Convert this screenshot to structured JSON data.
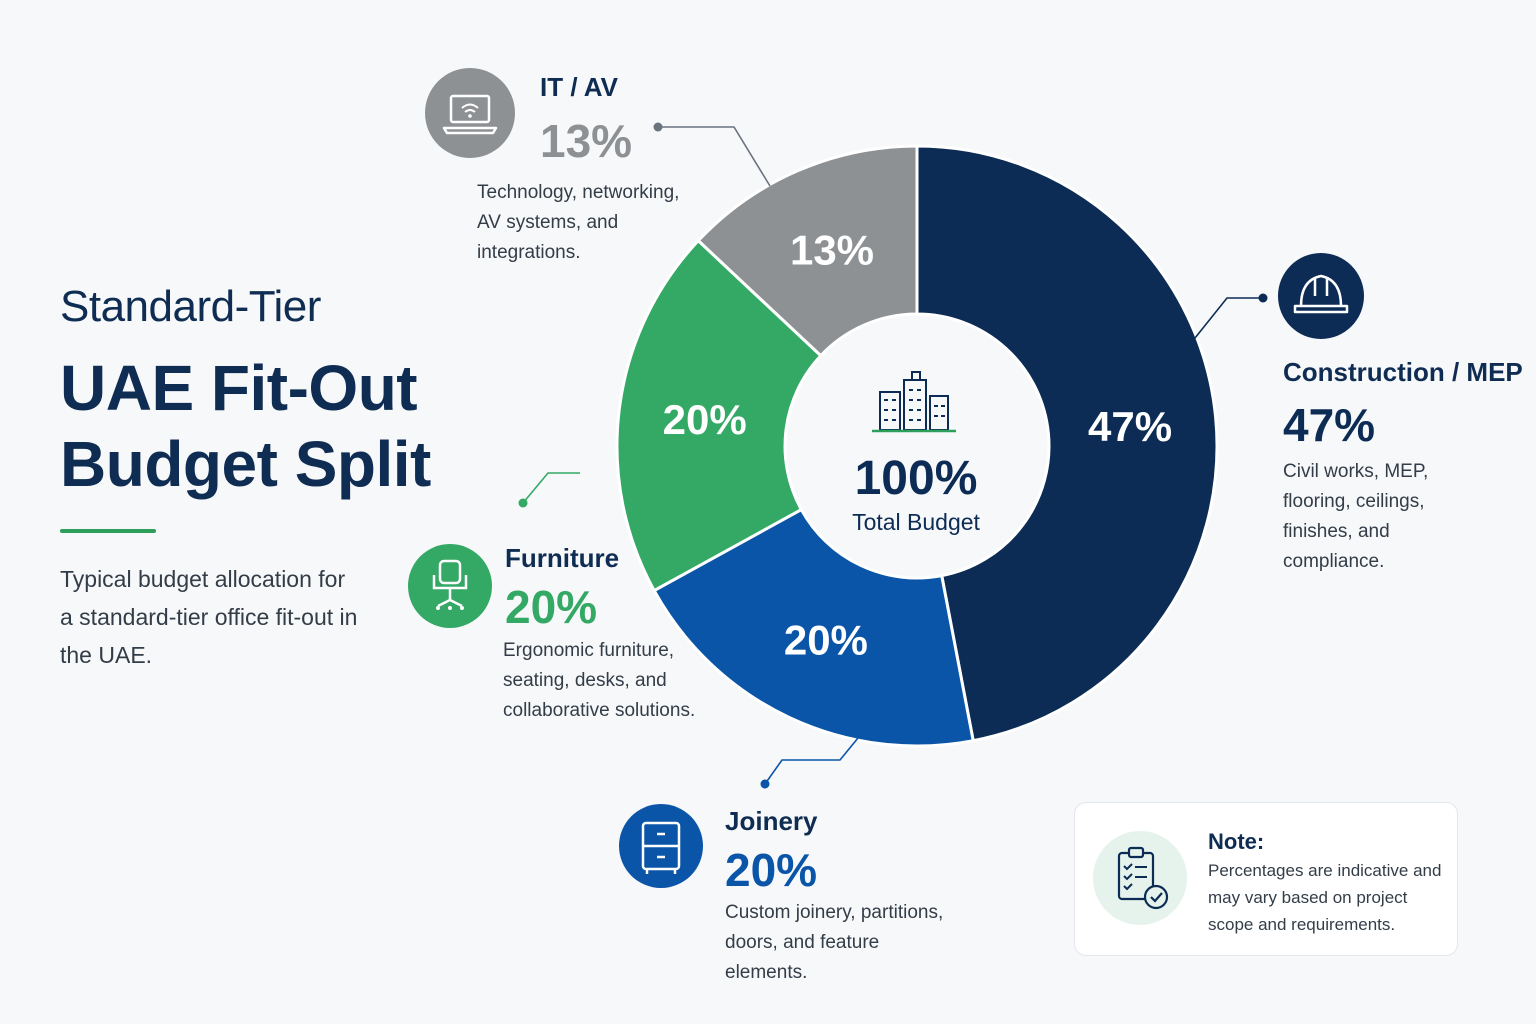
{
  "heading": {
    "line1": "Standard-Tier",
    "line2": "UAE Fit-Out",
    "line3": "Budget Split"
  },
  "intro": "Typical budget allocation for a standard-tier office fit-out in the UAE.",
  "center": {
    "value": "100%",
    "label": "Total Budget"
  },
  "colors": {
    "construction": "#0c2c55",
    "joinery": "#0a55a8",
    "furniture": "#34a865",
    "it_av": "#8e9194",
    "accent_green": "#2e9e5b"
  },
  "categories": [
    {
      "key": "it_av",
      "title": "IT / AV",
      "percent": "13%",
      "description": "Technology, networking, AV systems, and integrations.",
      "icon": "laptop-icon"
    },
    {
      "key": "construction",
      "title": "Construction / MEP",
      "percent": "47%",
      "description": "Civil works, MEP, flooring, ceilings, finishes, and compliance.",
      "icon": "hard-hat-icon"
    },
    {
      "key": "furniture",
      "title": "Furniture",
      "percent": "20%",
      "description": "Ergonomic furniture, seating, desks, and collaborative solutions.",
      "icon": "office-chair-icon"
    },
    {
      "key": "joinery",
      "title": "Joinery",
      "percent": "20%",
      "description": "Custom joinery, partitions, doors, and feature elements.",
      "icon": "cabinet-icon"
    }
  ],
  "note": {
    "title": "Note:",
    "text": "Percentages are indicative and may vary based on project scope and requirements.",
    "icon": "clipboard-check-icon"
  },
  "chart_data": {
    "type": "pie",
    "categories": [
      "Construction / MEP",
      "Joinery",
      "Furniture",
      "IT / AV"
    ],
    "values": [
      47,
      20,
      20,
      13
    ],
    "labels": [
      "47%",
      "20%",
      "20%",
      "13%"
    ],
    "legend": "none"
  }
}
